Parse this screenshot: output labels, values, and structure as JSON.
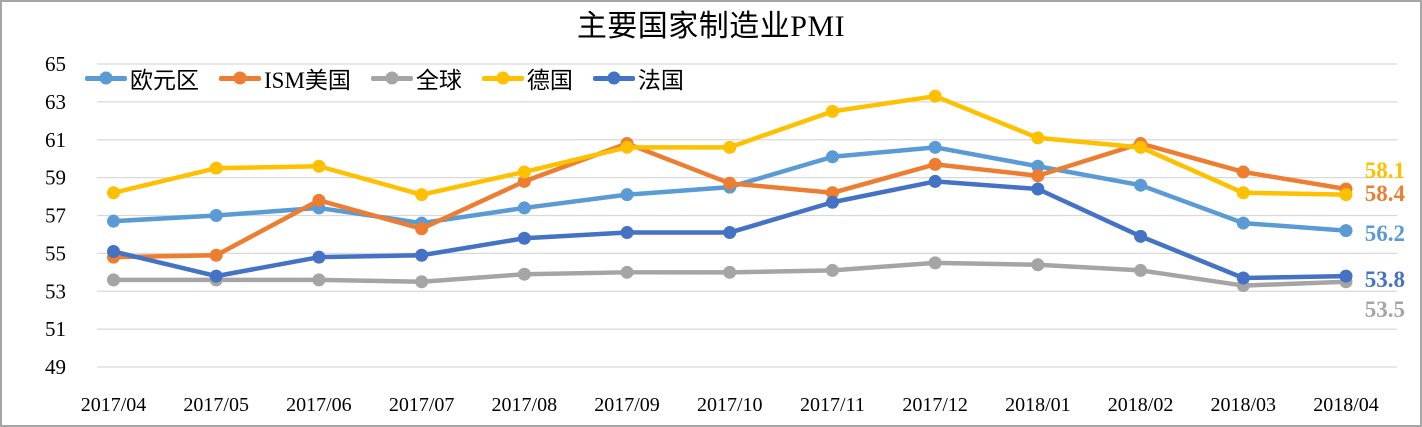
{
  "chart_data": {
    "type": "line",
    "title": "主要国家制造业PMI",
    "categories": [
      "2017/04",
      "2017/05",
      "2017/06",
      "2017/07",
      "2017/08",
      "2017/09",
      "2017/10",
      "2017/11",
      "2017/12",
      "2018/01",
      "2018/02",
      "2018/03",
      "2018/04"
    ],
    "series": [
      {
        "key": "eurozone",
        "name": "欧元区",
        "color": "#5B9BD5",
        "values": [
          56.7,
          57.0,
          57.4,
          56.6,
          57.4,
          58.1,
          58.5,
          60.1,
          60.6,
          59.6,
          58.6,
          56.6,
          56.2
        ]
      },
      {
        "key": "ism-us",
        "name": "ISM美国",
        "color": "#ED7D31",
        "values": [
          54.8,
          54.9,
          57.8,
          56.3,
          58.8,
          60.8,
          58.7,
          58.2,
          59.7,
          59.1,
          60.8,
          59.3,
          58.4
        ]
      },
      {
        "key": "global",
        "name": "全球",
        "color": "#A5A5A5",
        "values": [
          53.6,
          53.6,
          53.6,
          53.5,
          53.9,
          54.0,
          54.0,
          54.1,
          54.5,
          54.4,
          54.1,
          53.3,
          53.5
        ]
      },
      {
        "key": "germany",
        "name": "德国",
        "color": "#FFC000",
        "values": [
          58.2,
          59.5,
          59.6,
          58.1,
          59.3,
          60.6,
          60.6,
          62.5,
          63.3,
          61.1,
          60.6,
          58.2,
          58.1
        ]
      },
      {
        "key": "france",
        "name": "法国",
        "color": "#4472C4",
        "values": [
          55.1,
          53.8,
          54.8,
          54.9,
          55.8,
          56.1,
          56.1,
          57.7,
          58.8,
          58.4,
          55.9,
          53.7,
          53.8
        ]
      }
    ],
    "yticks": [
      65,
      63,
      61,
      59,
      57,
      55,
      53,
      51,
      49
    ],
    "ylim": [
      49,
      65
    ],
    "grid": true,
    "legend_position": "top-left",
    "end_labels": [
      {
        "text": "58.1",
        "value": 58.1,
        "series": "德国",
        "color": "#FFC000"
      },
      {
        "text": "58.4",
        "value": 58.4,
        "series": "ISM美国",
        "color": "#ED7D31"
      },
      {
        "text": "56.2",
        "value": 56.2,
        "series": "欧元区",
        "color": "#5B9BD5"
      },
      {
        "text": "53.8",
        "value": 53.8,
        "series": "法国",
        "color": "#4472C4"
      },
      {
        "text": "53.5",
        "value": 53.5,
        "series": "全球",
        "color": "#A5A5A5"
      }
    ],
    "colors": {
      "gridline": "#D9D9D9",
      "frame_border": "#A6A6A6",
      "axis_text": "#000000"
    }
  }
}
